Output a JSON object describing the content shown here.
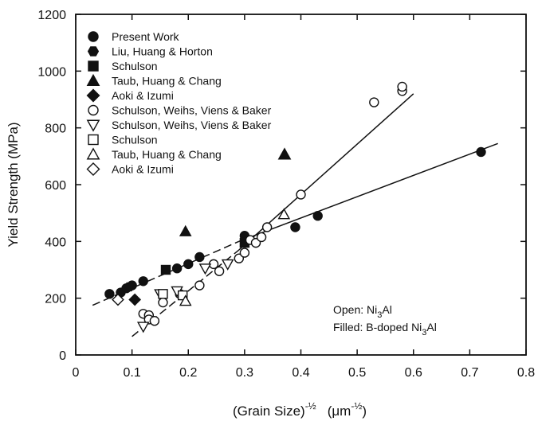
{
  "chart_data": {
    "type": "scatter",
    "xlabel": "(Grain Size)",
    "xlabel_exponent": "-½",
    "xlabel_unit": "(μm",
    "xlabel_unit_exponent": "-½",
    "xlabel_unit_close": ")",
    "ylabel": "Yield Strength (MPa)",
    "xlim": [
      0,
      0.8
    ],
    "ylim": [
      0,
      1200
    ],
    "x_ticks": [
      "0",
      "0.1",
      "0.2",
      "0.3",
      "0.4",
      "0.5",
      "0.6",
      "0.7",
      "0.8"
    ],
    "y_ticks": [
      "0",
      "200",
      "400",
      "600",
      "800",
      "1000",
      "1200"
    ],
    "legend_position": "top-left",
    "note": {
      "open_label": "Open: ",
      "open_formula": "Ni",
      "open_sub": "3",
      "open_suffix": "Al",
      "filled_label": "Filled: B-doped ",
      "filled_formula": "Ni",
      "filled_sub": "3",
      "filled_suffix": "Al"
    },
    "series": [
      {
        "name": "Present Work",
        "marker": "circle",
        "filled": true,
        "points": [
          [
            0.06,
            215
          ],
          [
            0.08,
            220
          ],
          [
            0.09,
            235
          ],
          [
            0.1,
            245
          ],
          [
            0.12,
            260
          ],
          [
            0.18,
            305
          ],
          [
            0.2,
            320
          ],
          [
            0.22,
            345
          ],
          [
            0.3,
            420
          ],
          [
            0.39,
            450
          ],
          [
            0.43,
            490
          ],
          [
            0.72,
            715
          ]
        ]
      },
      {
        "name": "Liu, Huang & Horton",
        "marker": "hexagon",
        "filled": true,
        "points": [
          [
            0.095,
            240
          ]
        ]
      },
      {
        "name": "Schulson",
        "marker": "square",
        "filled": true,
        "points": [
          [
            0.16,
            300
          ],
          [
            0.3,
            395
          ]
        ]
      },
      {
        "name": "Taub, Huang & Chang",
        "marker": "triangle",
        "filled": true,
        "points": [
          [
            0.195,
            435
          ]
        ]
      },
      {
        "name": "Aoki & Izumi",
        "marker": "diamond",
        "filled": true,
        "points": [
          [
            0.105,
            195
          ]
        ]
      },
      {
        "name": "Schulson, Weihs, Viens & Baker",
        "marker": "circle",
        "filled": false,
        "points": [
          [
            0.12,
            145
          ],
          [
            0.13,
            140
          ],
          [
            0.13,
            125
          ],
          [
            0.14,
            120
          ],
          [
            0.155,
            185
          ],
          [
            0.185,
            215
          ],
          [
            0.22,
            245
          ],
          [
            0.245,
            320
          ],
          [
            0.255,
            295
          ],
          [
            0.29,
            340
          ],
          [
            0.3,
            360
          ],
          [
            0.31,
            405
          ],
          [
            0.32,
            395
          ],
          [
            0.33,
            415
          ],
          [
            0.34,
            450
          ],
          [
            0.4,
            565
          ],
          [
            0.53,
            890
          ],
          [
            0.58,
            930
          ],
          [
            0.58,
            945
          ]
        ]
      },
      {
        "name": "Schulson, Weihs, Viens & Baker",
        "marker": "triangle-down",
        "filled": false,
        "points": [
          [
            0.12,
            100
          ],
          [
            0.15,
            215
          ],
          [
            0.18,
            225
          ],
          [
            0.23,
            305
          ],
          [
            0.27,
            320
          ]
        ]
      },
      {
        "name": "Schulson",
        "marker": "square",
        "filled": false,
        "points": [
          [
            0.155,
            215
          ],
          [
            0.19,
            210
          ]
        ]
      },
      {
        "name": "Taub, Huang & Chang",
        "marker": "triangle",
        "filled": false,
        "points": [
          [
            0.195,
            190
          ],
          [
            0.37,
            495
          ]
        ]
      },
      {
        "name": "Aoki & Izumi",
        "marker": "diamond",
        "filled": false,
        "points": [
          [
            0.075,
            195
          ]
        ]
      }
    ],
    "fit_lines": [
      {
        "style": "solid",
        "from": [
          0.29,
          370
        ],
        "to": [
          0.6,
          920
        ]
      },
      {
        "style": "dashed",
        "from": [
          0.1,
          65
        ],
        "to": [
          0.29,
          370
        ]
      },
      {
        "style": "solid",
        "from": [
          0.29,
          400
        ],
        "to": [
          0.75,
          745
        ]
      },
      {
        "style": "dashed",
        "from": [
          0.03,
          175
        ],
        "to": [
          0.29,
          400
        ]
      }
    ]
  }
}
